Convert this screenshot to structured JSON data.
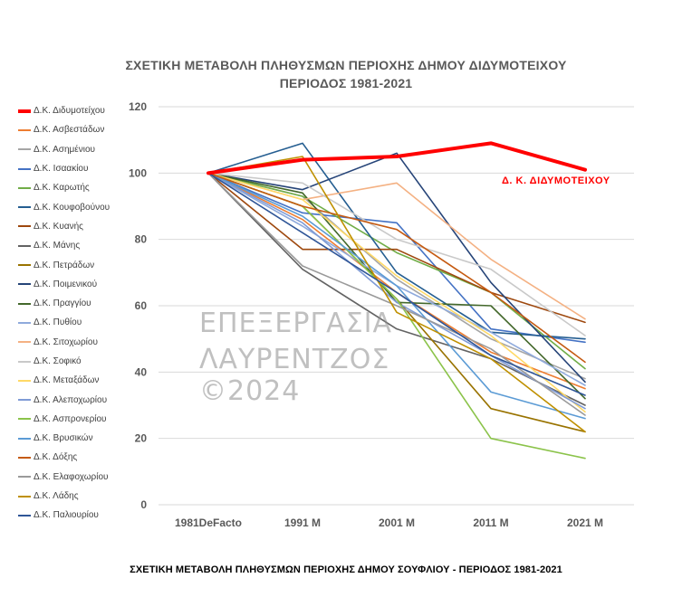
{
  "chart_data": {
    "type": "line",
    "title": "ΣΧΕΤΙΚΗ ΜΕΤΑΒΟΛΗ ΠΛΗΘΥΣΜΩΝ ΠΕΡΙΟΧΗΣ ΔΗΜΟΥ ΔΙΔΥΜΟΤΕΙΧΟΥ",
    "subtitle": "ΠΕΡΙΟΔΟΣ 1981-2021",
    "categories": [
      "1981DeFacto",
      "1991 M",
      "2001 M",
      "2011 M",
      "2021 M"
    ],
    "ylim": [
      0,
      120
    ],
    "yticks": [
      0,
      20,
      40,
      60,
      80,
      100,
      120
    ],
    "grid": true,
    "legend_position": "left",
    "series": [
      {
        "name": "Δ.Κ. Διδυμοτείχου",
        "color": "#ff0000",
        "width": 4,
        "values": [
          100,
          104,
          105,
          109,
          101
        ]
      },
      {
        "name": "Δ.Κ. Ασβεστάδων",
        "color": "#ed7d31",
        "width": 1.6,
        "values": [
          100,
          86,
          64,
          46,
          35
        ]
      },
      {
        "name": "Δ.Κ. Ασημένιου",
        "color": "#a5a5a5",
        "width": 1.6,
        "values": [
          100,
          93,
          68,
          50,
          38
        ]
      },
      {
        "name": "Δ.Κ. Ισαακίου",
        "color": "#4472c4",
        "width": 1.6,
        "values": [
          100,
          88,
          85,
          53,
          49
        ]
      },
      {
        "name": "Δ.Κ. Καρωτής",
        "color": "#70ad47",
        "width": 1.6,
        "values": [
          100,
          93,
          76,
          64,
          41
        ]
      },
      {
        "name": "Δ.Κ. Κουφοβούνου",
        "color": "#255e91",
        "width": 1.6,
        "values": [
          100,
          109,
          70,
          52,
          50
        ]
      },
      {
        "name": "Δ.Κ. Κυανής",
        "color": "#9e480e",
        "width": 1.6,
        "values": [
          100,
          77,
          77,
          64,
          55
        ]
      },
      {
        "name": "Δ.Κ. Μάνης",
        "color": "#636363",
        "width": 1.6,
        "values": [
          100,
          71,
          53,
          44,
          30
        ]
      },
      {
        "name": "Δ.Κ. Πετράδων",
        "color": "#997300",
        "width": 1.6,
        "values": [
          100,
          90,
          62,
          29,
          22
        ]
      },
      {
        "name": "Δ.Κ. Ποιμενικού",
        "color": "#264478",
        "width": 1.6,
        "values": [
          100,
          95,
          106,
          67,
          37
        ]
      },
      {
        "name": "Δ.Κ. Πραγγίου",
        "color": "#43682b",
        "width": 1.6,
        "values": [
          100,
          94,
          61,
          60,
          32
        ]
      },
      {
        "name": "Δ.Κ. Πυθίου",
        "color": "#8faadc",
        "width": 1.6,
        "values": [
          100,
          84,
          66,
          52,
          36
        ]
      },
      {
        "name": "Δ.Κ. Σιτοχωρίου",
        "color": "#f4b183",
        "width": 1.6,
        "values": [
          100,
          92,
          97,
          74,
          56
        ]
      },
      {
        "name": "Δ.Κ. Σοφικό",
        "color": "#c9c9c9",
        "width": 1.6,
        "values": [
          100,
          97,
          80,
          71,
          51
        ]
      },
      {
        "name": "Δ.Κ. Μεταξάδων",
        "color": "#ffd966",
        "width": 1.6,
        "values": [
          100,
          92,
          69,
          51,
          28
        ]
      },
      {
        "name": "Δ.Κ. Αλεποχωρίου",
        "color": "#7f9bd6",
        "width": 1.6,
        "values": [
          100,
          85,
          61,
          45,
          29
        ]
      },
      {
        "name": "Δ.Κ. Ασπρονερίου",
        "color": "#8bc34a",
        "width": 1.6,
        "values": [
          100,
          90,
          62,
          20,
          14
        ]
      },
      {
        "name": "Δ.Κ. Βρυσικών",
        "color": "#5b9bd5",
        "width": 1.6,
        "values": [
          100,
          87,
          66,
          34,
          26
        ]
      },
      {
        "name": "Δ.Κ. Δόξης",
        "color": "#c55a11",
        "width": 1.6,
        "values": [
          100,
          90,
          83,
          64,
          43
        ]
      },
      {
        "name": "Δ.Κ. Ελαφοχωρίου",
        "color": "#9a9a9a",
        "width": 1.6,
        "values": [
          100,
          72,
          60,
          47,
          27
        ]
      },
      {
        "name": "Δ.Κ. Λάδης",
        "color": "#bf9000",
        "width": 1.6,
        "values": [
          100,
          105,
          58,
          44,
          22
        ]
      },
      {
        "name": "Δ.Κ. Παλιουρίου",
        "color": "#2f5597",
        "width": 1.6,
        "values": [
          100,
          82,
          64,
          45,
          33
        ]
      }
    ],
    "annotation": "Δ. Κ.  ΔΙΔΥΜΟΤΕΙΧΟΥ"
  },
  "watermark": {
    "line1": "ΕΠΕΞΕΡΓΑΣΙΑ",
    "line2": "ΛΑΥΡΕΝΤΖΟΣ ©2024"
  },
  "footer": "ΣΧΕΤΙΚΗ ΜΕΤΑΒΟΛΗ ΠΛΗΘΥΣΜΩΝ ΠΕΡΙΟΧΗΣ ΔΗΜΟΥ ΣΟΥΦΛΙΟΥ - ΠΕΡΙΟΔΟΣ 1981-2021"
}
